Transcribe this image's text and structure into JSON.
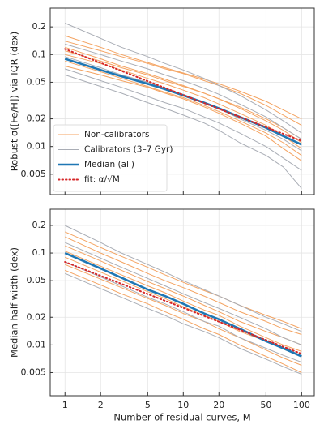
{
  "chart_data": [
    {
      "type": "line",
      "ylabel": "Robust σ([Fe/H]) via IQR (dex)",
      "log": true,
      "grid": true,
      "legend": "lower left",
      "x": [
        1,
        2,
        3,
        5,
        7,
        10,
        15,
        20,
        30,
        50,
        70,
        100
      ],
      "xlim": [
        0.75,
        128
      ],
      "xticks": [
        1,
        2,
        5,
        10,
        20,
        50,
        100
      ],
      "ylim": [
        0.003,
        0.32
      ],
      "yticks": [
        0.005,
        0.01,
        0.02,
        0.05,
        0.1,
        0.2
      ],
      "series": [
        {
          "name": "Non-calibrators",
          "color": "#f4a361",
          "lines": [
            [
              0.14,
              0.11,
              0.095,
              0.08,
              0.07,
              0.062,
              0.052,
              0.046,
              0.038,
              0.028,
              0.022,
              0.017
            ],
            [
              0.12,
              0.09,
              0.075,
              0.062,
              0.054,
              0.046,
              0.038,
              0.033,
              0.027,
              0.02,
              0.016,
              0.012
            ],
            [
              0.1,
              0.08,
              0.068,
              0.055,
              0.048,
              0.041,
              0.034,
              0.029,
              0.023,
              0.017,
              0.013,
              0.0095
            ],
            [
              0.085,
              0.065,
              0.055,
              0.045,
              0.039,
              0.034,
              0.028,
              0.024,
              0.019,
              0.014,
              0.011,
              0.008
            ],
            [
              0.16,
              0.12,
              0.1,
              0.082,
              0.072,
              0.063,
              0.054,
              0.048,
              0.04,
              0.031,
              0.025,
              0.02
            ],
            [
              0.075,
              0.06,
              0.052,
              0.044,
              0.038,
              0.033,
              0.027,
              0.023,
              0.018,
              0.013,
              0.0095,
              0.007
            ],
            [
              0.11,
              0.085,
              0.072,
              0.06,
              0.052,
              0.045,
              0.038,
              0.033,
              0.026,
              0.019,
              0.015,
              0.011
            ]
          ]
        },
        {
          "name": "Calibrators (3–7 Gyr)",
          "color": "#a9adb5",
          "lines": [
            [
              0.22,
              0.15,
              0.12,
              0.095,
              0.08,
              0.068,
              0.055,
              0.046,
              0.036,
              0.025,
              0.019,
              0.014
            ],
            [
              0.07,
              0.052,
              0.044,
              0.035,
              0.03,
              0.026,
              0.021,
              0.018,
              0.014,
              0.01,
              0.0075,
              0.0055
            ],
            [
              0.06,
              0.045,
              0.038,
              0.03,
              0.026,
              0.022,
              0.018,
              0.015,
              0.011,
              0.008,
              0.006,
              0.0035
            ],
            [
              0.13,
              0.1,
              0.085,
              0.07,
              0.06,
              0.052,
              0.043,
              0.037,
              0.029,
              0.021,
              0.016,
              0.012
            ],
            [
              0.095,
              0.072,
              0.06,
              0.05,
              0.043,
              0.037,
              0.03,
              0.026,
              0.02,
              0.015,
              0.012,
              0.009
            ]
          ]
        },
        {
          "name": "Median (all)",
          "color": "#1f77b4",
          "values": [
            0.09,
            0.068,
            0.058,
            0.048,
            0.042,
            0.036,
            0.03,
            0.026,
            0.021,
            0.016,
            0.013,
            0.0105
          ]
        },
        {
          "name": "fit: α/√M",
          "color": "#d62728",
          "dotted": true,
          "x": [
            1,
            100
          ],
          "values": [
            0.115,
            0.0115
          ]
        }
      ]
    },
    {
      "type": "line",
      "ylabel": "Median half-width (dex)",
      "xlabel": "Number of residual curves, M",
      "log": true,
      "grid": true,
      "x": [
        1,
        2,
        3,
        5,
        7,
        10,
        15,
        20,
        30,
        50,
        70,
        100
      ],
      "xlim": [
        0.75,
        128
      ],
      "xticks": [
        1,
        2,
        5,
        10,
        20,
        50,
        100
      ],
      "ylim": [
        0.0028,
        0.3
      ],
      "yticks": [
        0.005,
        0.01,
        0.02,
        0.05,
        0.1,
        0.2
      ],
      "series": [
        {
          "color": "#f4a361",
          "lines": [
            [
              0.15,
              0.1,
              0.08,
              0.06,
              0.05,
              0.042,
              0.034,
              0.029,
              0.023,
              0.018,
              0.015,
              0.013
            ],
            [
              0.12,
              0.082,
              0.065,
              0.049,
              0.041,
              0.034,
              0.027,
              0.023,
              0.018,
              0.014,
              0.012,
              0.01
            ],
            [
              0.09,
              0.062,
              0.05,
              0.038,
              0.032,
              0.026,
              0.021,
              0.018,
              0.014,
              0.011,
              0.009,
              0.0075
            ],
            [
              0.075,
              0.052,
              0.042,
              0.032,
              0.027,
              0.022,
              0.018,
              0.015,
              0.012,
              0.0088,
              0.0072,
              0.006
            ],
            [
              0.17,
              0.115,
              0.092,
              0.07,
              0.058,
              0.048,
              0.039,
              0.034,
              0.027,
              0.021,
              0.018,
              0.015
            ],
            [
              0.065,
              0.045,
              0.036,
              0.028,
              0.023,
              0.019,
              0.015,
              0.013,
              0.01,
              0.0075,
              0.0062,
              0.005
            ],
            [
              0.105,
              0.072,
              0.058,
              0.044,
              0.037,
              0.03,
              0.024,
              0.021,
              0.016,
              0.012,
              0.01,
              0.0085
            ]
          ]
        },
        {
          "color": "#a9adb5",
          "lines": [
            [
              0.2,
              0.13,
              0.1,
              0.075,
              0.062,
              0.05,
              0.04,
              0.034,
              0.027,
              0.02,
              0.017,
              0.014
            ],
            [
              0.08,
              0.055,
              0.044,
              0.033,
              0.028,
              0.023,
              0.018,
              0.016,
              0.012,
              0.0092,
              0.0077,
              0.0065
            ],
            [
              0.06,
              0.041,
              0.033,
              0.025,
              0.021,
              0.017,
              0.014,
              0.012,
              0.0092,
              0.007,
              0.0058,
              0.0048
            ],
            [
              0.13,
              0.088,
              0.07,
              0.053,
              0.044,
              0.036,
              0.029,
              0.025,
              0.02,
              0.015,
              0.012,
              0.01
            ]
          ]
        },
        {
          "color": "#1f77b4",
          "values": [
            0.1,
            0.068,
            0.054,
            0.04,
            0.034,
            0.028,
            0.022,
            0.019,
            0.015,
            0.011,
            0.0092,
            0.0075
          ]
        },
        {
          "color": "#d62728",
          "dotted": true,
          "x": [
            1,
            100
          ],
          "values": [
            0.08,
            0.008
          ]
        }
      ]
    }
  ]
}
